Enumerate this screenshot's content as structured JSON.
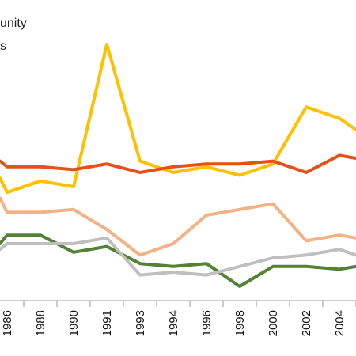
{
  "legend": {
    "line1": "unity",
    "line2": "s"
  },
  "chart_data": {
    "type": "line",
    "title": "",
    "xlabel": "",
    "ylabel": "",
    "x": [
      "1986",
      "1988",
      "1990",
      "1991",
      "1993",
      "1994",
      "1996",
      "1998",
      "2000",
      "2002",
      "2004"
    ],
    "x_visible_range": [
      "1985",
      "2005"
    ],
    "y_visible_range": [
      0,
      100
    ],
    "series": [
      {
        "color": "#ffc000",
        "points": [
          [
            1985,
            43
          ],
          [
            1986,
            38
          ],
          [
            1988,
            42
          ],
          [
            1990,
            40
          ],
          [
            1991,
            90
          ],
          [
            1993,
            49
          ],
          [
            1994,
            45
          ],
          [
            1996,
            47
          ],
          [
            1998,
            44
          ],
          [
            2000,
            48
          ],
          [
            2002,
            68
          ],
          [
            2004,
            64
          ],
          [
            2005,
            60
          ]
        ]
      },
      {
        "color": "#e8501a",
        "points": [
          [
            1985,
            49
          ],
          [
            1986,
            47
          ],
          [
            1988,
            47
          ],
          [
            1990,
            46
          ],
          [
            1991,
            48
          ],
          [
            1993,
            45
          ],
          [
            1994,
            47
          ],
          [
            1996,
            48
          ],
          [
            1998,
            48
          ],
          [
            2000,
            49
          ],
          [
            2002,
            45
          ],
          [
            2004,
            51
          ],
          [
            2005,
            50
          ]
        ]
      },
      {
        "color": "#f4b183",
        "points": [
          [
            1985,
            36
          ],
          [
            1986,
            31
          ],
          [
            1988,
            31
          ],
          [
            1990,
            32
          ],
          [
            1991,
            25
          ],
          [
            1993,
            16
          ],
          [
            1994,
            20
          ],
          [
            1996,
            30
          ],
          [
            1998,
            32
          ],
          [
            2000,
            34
          ],
          [
            2002,
            21
          ],
          [
            2004,
            23
          ],
          [
            2005,
            22
          ]
        ]
      },
      {
        "color": "#538135",
        "points": [
          [
            1985,
            20
          ],
          [
            1986,
            23
          ],
          [
            1988,
            23
          ],
          [
            1990,
            17
          ],
          [
            1991,
            19
          ],
          [
            1993,
            13
          ],
          [
            1994,
            12
          ],
          [
            1996,
            13
          ],
          [
            1998,
            5
          ],
          [
            2000,
            12
          ],
          [
            2002,
            12
          ],
          [
            2004,
            11
          ],
          [
            2005,
            12
          ]
        ]
      },
      {
        "color": "#bfbfbf",
        "points": [
          [
            1985,
            18
          ],
          [
            1986,
            20
          ],
          [
            1988,
            20
          ],
          [
            1990,
            20
          ],
          [
            1991,
            22
          ],
          [
            1993,
            9
          ],
          [
            1994,
            10
          ],
          [
            1996,
            9
          ],
          [
            1998,
            12
          ],
          [
            2000,
            15
          ],
          [
            2002,
            16
          ],
          [
            2004,
            18
          ],
          [
            2005,
            16
          ]
        ]
      }
    ]
  }
}
